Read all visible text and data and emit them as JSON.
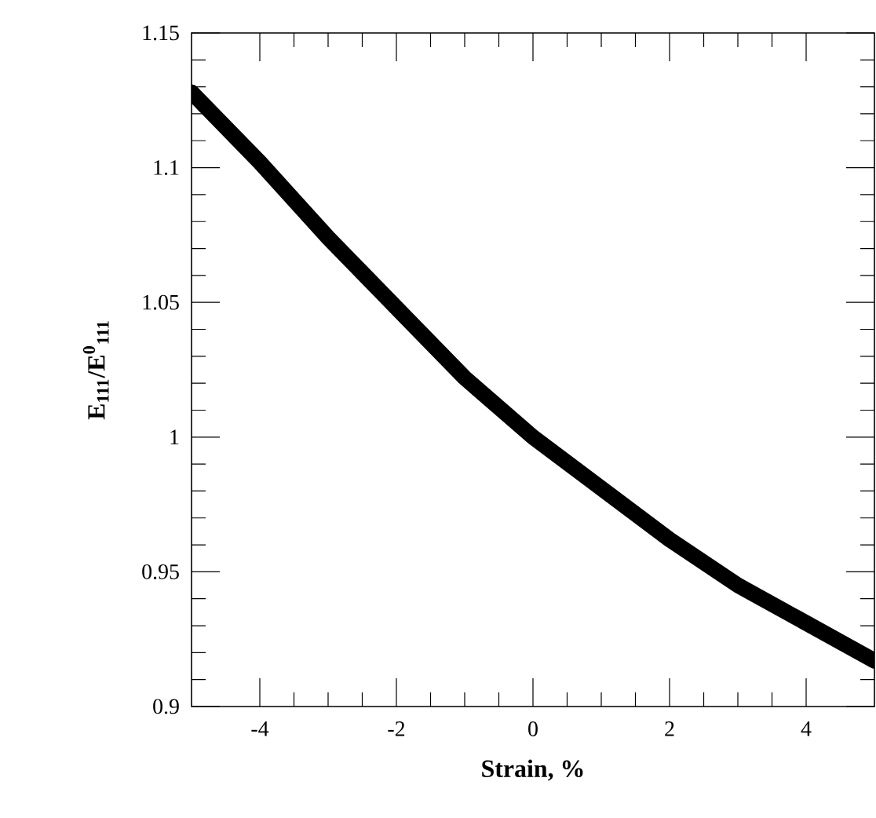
{
  "chart_data": {
    "type": "line",
    "xlabel": "Strain, %",
    "ylabel": "E$_{111}$/E$^{0}$$_{111}$",
    "x": [
      -5,
      -4,
      -3,
      -2,
      -1,
      0,
      1,
      2,
      3,
      4,
      5
    ],
    "series": [
      {
        "color": "#000000",
        "values": [
          1.128,
          1.102,
          1.074,
          1.048,
          1.022,
          1.0,
          0.981,
          0.962,
          0.945,
          0.931,
          0.917
        ]
      }
    ],
    "xlim": [
      -5,
      5
    ],
    "ylim": [
      0.9,
      1.15
    ],
    "xticks": [
      -4,
      -2,
      0,
      2,
      4
    ],
    "yticks": [
      0.9,
      0.95,
      1,
      1.05,
      1.1,
      1.15
    ],
    "line_style": "solid"
  }
}
